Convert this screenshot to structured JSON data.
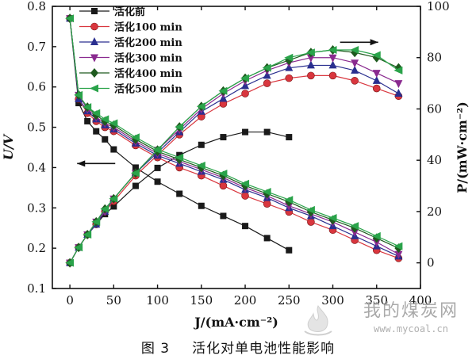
{
  "figure": {
    "number": "图 3",
    "caption": "活化对单电池性能影响"
  },
  "watermark": {
    "title": "我的煤炭网",
    "url": "www.mycoal.cn"
  },
  "chart_data": {
    "type": "line",
    "title": "",
    "xlabel": "J/(mA·cm⁻²)",
    "ylabel_left": "U/V",
    "ylabel_right": "P/(mW·cm⁻²)",
    "xlim": [
      -20,
      400
    ],
    "ylim_left": [
      0.1,
      0.8
    ],
    "ylim_right": [
      -10,
      100
    ],
    "x_ticks": [
      0,
      50,
      100,
      150,
      200,
      250,
      300,
      350,
      400
    ],
    "y_left_ticks": [
      0.1,
      0.2,
      0.3,
      0.4,
      0.5,
      0.6,
      0.7,
      0.8
    ],
    "y_right_ticks": [
      0,
      20,
      40,
      60,
      80,
      100
    ],
    "grid": false,
    "legend": "top-left",
    "annotations": [
      {
        "type": "arrow",
        "direction": "left",
        "axis": "U",
        "near_x": 30,
        "near_y": 0.41
      },
      {
        "type": "arrow",
        "direction": "right",
        "axis": "P",
        "near_x": 330,
        "near_y": 86
      }
    ],
    "series": [
      {
        "name": "活化前",
        "marker": "square",
        "color": "#1a1a1a",
        "voltage": {
          "x": [
            0,
            10,
            20,
            30,
            40,
            50,
            75,
            100,
            125,
            150,
            175,
            200,
            225,
            250
          ],
          "y": [
            0.77,
            0.56,
            0.515,
            0.49,
            0.47,
            0.445,
            0.4,
            0.365,
            0.335,
            0.305,
            0.28,
            0.255,
            0.225,
            0.195
          ]
        },
        "power": {
          "x": [
            0,
            10,
            20,
            30,
            40,
            50,
            75,
            100,
            125,
            150,
            175,
            200,
            225,
            250
          ],
          "y": [
            0,
            6,
            11,
            15,
            19,
            22,
            30,
            37,
            42,
            46,
            49,
            51,
            51,
            49
          ]
        }
      },
      {
        "name": "活化100 min",
        "marker": "circle",
        "color": "#d9363e",
        "voltage": {
          "x": [
            0,
            10,
            20,
            30,
            40,
            50,
            75,
            100,
            125,
            150,
            175,
            200,
            225,
            250,
            275,
            300,
            325,
            350,
            375
          ],
          "y": [
            0.77,
            0.57,
            0.535,
            0.515,
            0.5,
            0.49,
            0.455,
            0.425,
            0.4,
            0.38,
            0.355,
            0.33,
            0.31,
            0.29,
            0.265,
            0.245,
            0.22,
            0.195,
            0.175
          ]
        },
        "power": {
          "x": [
            0,
            10,
            20,
            30,
            40,
            50,
            75,
            100,
            125,
            150,
            175,
            200,
            225,
            250,
            275,
            300,
            325,
            350,
            375
          ],
          "y": [
            0,
            6,
            11,
            15,
            20,
            24,
            34,
            42,
            50,
            57,
            62,
            66,
            70,
            72,
            73,
            73,
            71,
            68,
            65
          ]
        }
      },
      {
        "name": "活化200 min",
        "marker": "triangle-up",
        "color": "#2a2f8f",
        "voltage": {
          "x": [
            0,
            10,
            20,
            30,
            40,
            50,
            75,
            100,
            125,
            150,
            175,
            200,
            225,
            250,
            275,
            300,
            325,
            350,
            375
          ],
          "y": [
            0.77,
            0.57,
            0.54,
            0.52,
            0.505,
            0.495,
            0.46,
            0.43,
            0.41,
            0.39,
            0.37,
            0.345,
            0.325,
            0.3,
            0.28,
            0.255,
            0.23,
            0.205,
            0.18
          ]
        },
        "power": {
          "x": [
            0,
            10,
            20,
            30,
            40,
            50,
            75,
            100,
            125,
            150,
            175,
            200,
            225,
            250,
            275,
            300,
            325,
            350,
            375
          ],
          "y": [
            0,
            6,
            11,
            15,
            20,
            25,
            35,
            43,
            51,
            59,
            64,
            69,
            73,
            76,
            77,
            77,
            75,
            71,
            66
          ]
        }
      },
      {
        "name": "活化300 min",
        "marker": "triangle-down",
        "color": "#8a2a8f",
        "voltage": {
          "x": [
            0,
            10,
            20,
            30,
            40,
            50,
            75,
            100,
            125,
            150,
            175,
            200,
            225,
            250,
            275,
            300,
            325,
            350,
            375
          ],
          "y": [
            0.77,
            0.58,
            0.545,
            0.525,
            0.51,
            0.5,
            0.465,
            0.435,
            0.415,
            0.395,
            0.375,
            0.35,
            0.33,
            0.305,
            0.285,
            0.265,
            0.24,
            0.215,
            0.185
          ]
        },
        "power": {
          "x": [
            0,
            10,
            20,
            30,
            40,
            50,
            75,
            100,
            125,
            150,
            175,
            200,
            225,
            250,
            275,
            300,
            325,
            350,
            375
          ],
          "y": [
            0,
            6,
            11,
            16,
            20,
            25,
            35,
            44,
            52,
            60,
            66,
            71,
            75,
            78,
            80,
            80,
            78,
            74,
            70
          ]
        }
      },
      {
        "name": "活化400 min",
        "marker": "diamond",
        "color": "#1e5a1e",
        "voltage": {
          "x": [
            0,
            10,
            20,
            30,
            40,
            50,
            75,
            100,
            125,
            150,
            175,
            200,
            225,
            250,
            275,
            300,
            325,
            350,
            375
          ],
          "y": [
            0.77,
            0.58,
            0.55,
            0.53,
            0.515,
            0.505,
            0.47,
            0.44,
            0.42,
            0.4,
            0.38,
            0.355,
            0.335,
            0.315,
            0.29,
            0.27,
            0.25,
            0.225,
            0.2
          ]
        },
        "power": {
          "x": [
            0,
            10,
            20,
            30,
            40,
            50,
            75,
            100,
            125,
            150,
            175,
            200,
            225,
            250,
            275,
            300,
            325,
            350,
            375
          ],
          "y": [
            0,
            6,
            11,
            16,
            21,
            25,
            35,
            44,
            53,
            61,
            67,
            72,
            76,
            79,
            82,
            83,
            82,
            80,
            76
          ]
        }
      },
      {
        "name": "活化500 min",
        "marker": "triangle-left",
        "color": "#2aa34a",
        "voltage": {
          "x": [
            0,
            10,
            20,
            30,
            40,
            50,
            75,
            100,
            125,
            150,
            175,
            200,
            225,
            250,
            275,
            300,
            325,
            350,
            375
          ],
          "y": [
            0.77,
            0.58,
            0.55,
            0.535,
            0.52,
            0.51,
            0.475,
            0.445,
            0.425,
            0.405,
            0.385,
            0.36,
            0.34,
            0.32,
            0.295,
            0.275,
            0.255,
            0.23,
            0.205
          ]
        },
        "power": {
          "x": [
            0,
            10,
            20,
            30,
            40,
            50,
            75,
            100,
            125,
            150,
            175,
            200,
            225,
            250,
            275,
            300,
            325,
            350,
            375
          ],
          "y": [
            0,
            6,
            11,
            16,
            21,
            25,
            35,
            44,
            53,
            61,
            67,
            72,
            76,
            80,
            82,
            83,
            83,
            81,
            75
          ]
        }
      }
    ]
  }
}
